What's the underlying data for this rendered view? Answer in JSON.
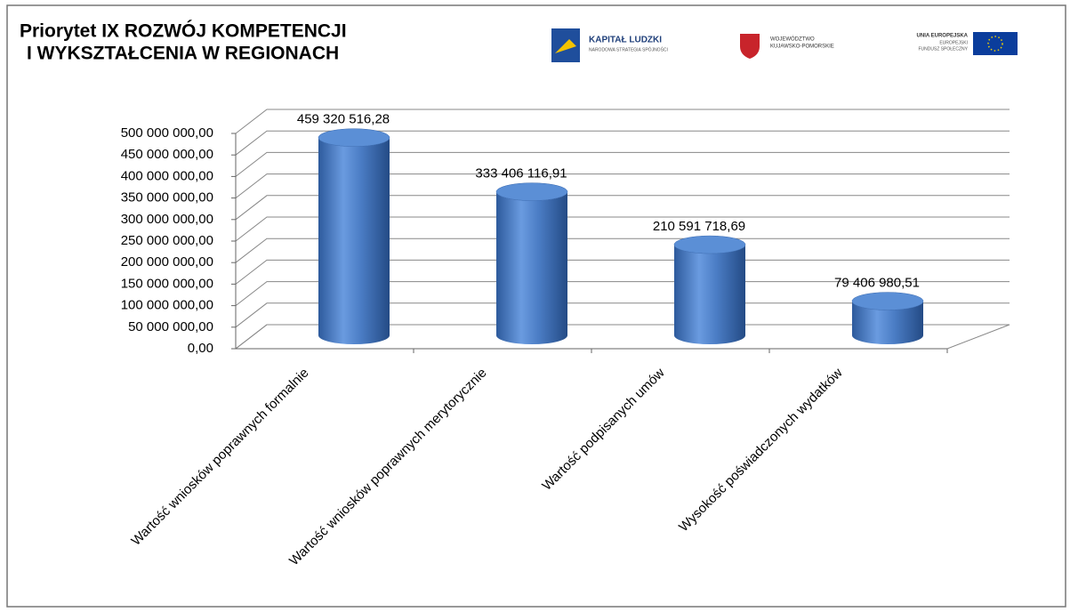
{
  "chart_data": {
    "type": "bar",
    "title": [
      "Priorytet IX ROZWÓJ KOMPETENCJI",
      "I WYKSZTAŁCENIA W REGIONACH"
    ],
    "logos": {
      "kapital": [
        "KAPITAŁ LUDZKI",
        "NARODOWA STRATEGIA SPÓJNOŚCI"
      ],
      "wojewodztwo": [
        "WOJEWÓDZTWO",
        "KUJAWSKO-POMORSKIE"
      ],
      "unia": [
        "UNIA EUROPEJSKA",
        "EUROPEJSKI",
        "FUNDUSZ SPOŁECZNY"
      ]
    },
    "categories": [
      "Wartość wniosków poprawnych formalnie",
      "Wartość wniosków poprawnych merytorycznie",
      "Wartość podpisanych umów",
      "Wysokość poświadczonych wydatków"
    ],
    "values": [
      459320516.28,
      333406116.91,
      210591718.69,
      79406980.51
    ],
    "value_labels": [
      "459 320 516,28",
      "333 406 116,91",
      "210 591 718,69",
      "79 406 980,51"
    ],
    "color": "#4a7cc4",
    "ylim": [
      0,
      500000000
    ],
    "yticks": [
      {
        "value": 0,
        "label": "0,00"
      },
      {
        "value": 50000000,
        "label": "50 000 000,00"
      },
      {
        "value": 100000000,
        "label": "100 000 000,00"
      },
      {
        "value": 150000000,
        "label": "150 000 000,00"
      },
      {
        "value": 200000000,
        "label": "200 000 000,00"
      },
      {
        "value": 250000000,
        "label": "250 000 000,00"
      },
      {
        "value": 300000000,
        "label": "300 000 000,00"
      },
      {
        "value": 350000000,
        "label": "350 000 000,00"
      },
      {
        "value": 400000000,
        "label": "400 000 000,00"
      },
      {
        "value": 450000000,
        "label": "450 000 000,00"
      },
      {
        "value": 500000000,
        "label": "500 000 000,00"
      }
    ],
    "grid": true
  }
}
